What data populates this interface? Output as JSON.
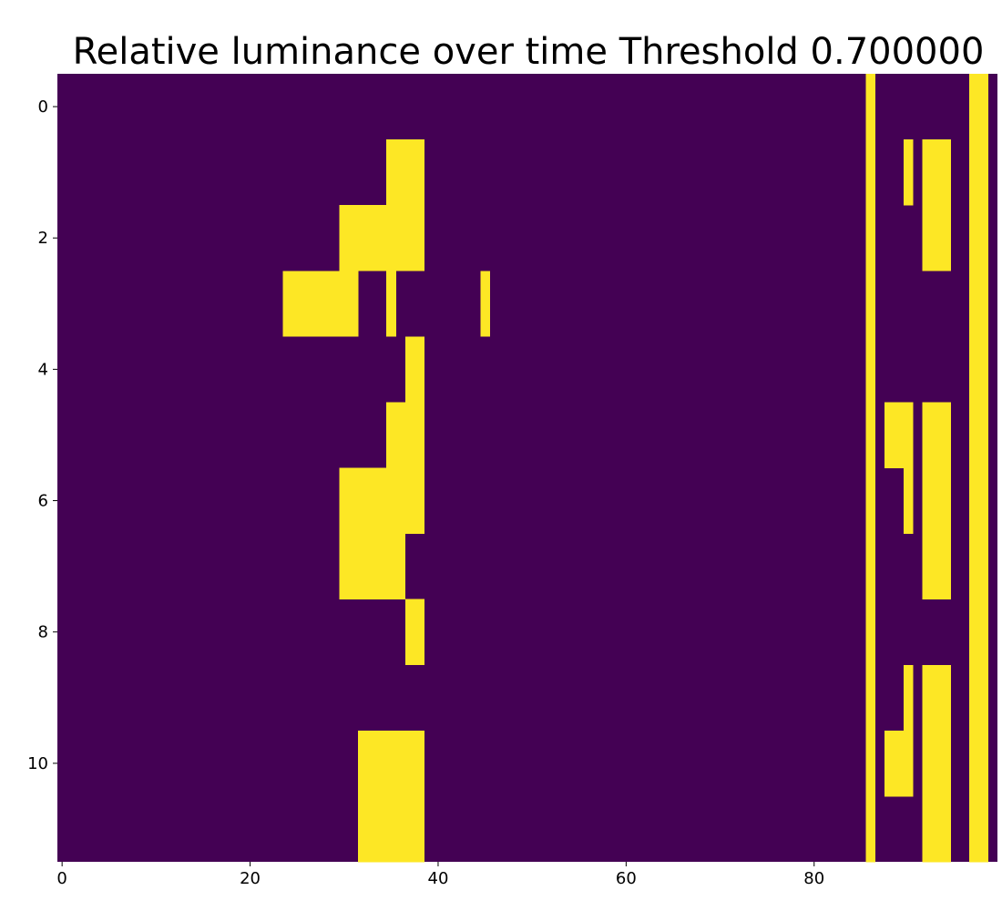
{
  "chart_data": {
    "type": "heatmap",
    "title": "Relative luminance over time Threshold 0.700000",
    "xlabel": "",
    "ylabel": "",
    "n_cols": 100,
    "n_rows": 12,
    "xlim": [
      -0.5,
      99.5
    ],
    "ylim": [
      11.5,
      -0.5
    ],
    "x_ticks": [
      0,
      20,
      40,
      60,
      80
    ],
    "y_ticks": [
      0,
      2,
      4,
      6,
      8,
      10
    ],
    "grid": false,
    "value_colors": {
      "0": "#440154",
      "1": "#fde725"
    },
    "rows_on_segments": [
      [
        [
          86,
          86
        ],
        [
          97,
          98
        ]
      ],
      [
        [
          35,
          38
        ],
        [
          86,
          86
        ],
        [
          90,
          90
        ],
        [
          92,
          94
        ],
        [
          97,
          98
        ]
      ],
      [
        [
          30,
          38
        ],
        [
          86,
          86
        ],
        [
          92,
          94
        ],
        [
          97,
          98
        ]
      ],
      [
        [
          24,
          31
        ],
        [
          35,
          35
        ],
        [
          45,
          45
        ],
        [
          86,
          86
        ],
        [
          97,
          98
        ]
      ],
      [
        [
          37,
          38
        ],
        [
          86,
          86
        ],
        [
          97,
          98
        ]
      ],
      [
        [
          35,
          38
        ],
        [
          86,
          86
        ],
        [
          88,
          90
        ],
        [
          92,
          94
        ],
        [
          97,
          98
        ]
      ],
      [
        [
          30,
          38
        ],
        [
          86,
          86
        ],
        [
          90,
          90
        ],
        [
          92,
          94
        ],
        [
          97,
          98
        ]
      ],
      [
        [
          30,
          36
        ],
        [
          86,
          86
        ],
        [
          92,
          94
        ],
        [
          97,
          98
        ]
      ],
      [
        [
          37,
          38
        ],
        [
          86,
          86
        ],
        [
          97,
          98
        ]
      ],
      [
        [
          86,
          86
        ],
        [
          90,
          90
        ],
        [
          92,
          94
        ],
        [
          97,
          98
        ]
      ],
      [
        [
          32,
          38
        ],
        [
          86,
          86
        ],
        [
          88,
          90
        ],
        [
          92,
          94
        ],
        [
          97,
          98
        ]
      ],
      [
        [
          32,
          38
        ],
        [
          86,
          86
        ],
        [
          92,
          94
        ],
        [
          97,
          98
        ]
      ]
    ]
  }
}
